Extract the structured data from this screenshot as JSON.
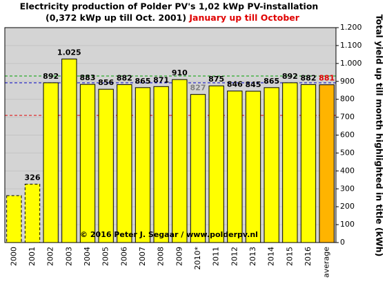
{
  "chart_data": {
    "type": "bar",
    "title": "Electricity production  of Polder PV's 1,02 kWp PV-installation",
    "subtitle": "(0,372 kWp up till Oct. 2001)",
    "subtitle_highlight": "January up till October",
    "y_label": "Total yield up till month highlighted in title (kWh)",
    "annotation": "© 2016 Peter J. Segaar / www.polderpv.nl",
    "categories": [
      "2000",
      "2001",
      "2002",
      "2003",
      "2004",
      "2005",
      "2006",
      "2007",
      "2008",
      "2009",
      "2010*",
      "2011",
      "2012",
      "2013",
      "2014",
      "2015",
      "2016",
      "average"
    ],
    "values": [
      262,
      326,
      892,
      1025,
      883,
      856,
      882,
      865,
      871,
      910,
      827,
      875,
      846,
      845,
      865,
      892,
      882,
      881
    ],
    "value_labels": [
      null,
      "326",
      "892",
      "1.025",
      "883",
      "856",
      "882",
      "865",
      "871",
      "910",
      "827",
      "875",
      "846",
      "845",
      "865",
      "892",
      "882",
      "881"
    ],
    "colors": [
      "#ffff00",
      "#ffff00",
      "#ffff00",
      "#ffff00",
      "#ffff00",
      "#ffff00",
      "#ffff00",
      "#ffff00",
      "#ffff00",
      "#ffff00",
      "#ffff00",
      "#ffff00",
      "#ffff00",
      "#ffff00",
      "#ffff00",
      "#ffff00",
      "#ffff00",
      "#ffb400"
    ],
    "label_colors": [
      "#000000",
      "#000000",
      "#000000",
      "#000000",
      "#000000",
      "#000000",
      "#000000",
      "#000000",
      "#000000",
      "#000000",
      "#808080",
      "#000000",
      "#000000",
      "#000000",
      "#000000",
      "#000000",
      "#000000",
      "#e00000"
    ],
    "dashed": [
      true,
      true,
      false,
      false,
      false,
      false,
      false,
      false,
      false,
      false,
      false,
      false,
      false,
      false,
      false,
      false,
      false,
      false
    ],
    "reference_lines": [
      {
        "value": 930,
        "color": "#00a000"
      },
      {
        "value": 892,
        "color": "#0000c0"
      },
      {
        "value": 710,
        "color": "#e00000"
      }
    ],
    "ylim": [
      0,
      1200
    ],
    "yticks": [
      0,
      100,
      200,
      300,
      400,
      500,
      600,
      700,
      800,
      900,
      {
        "value": 1000,
        "label": "1.000"
      },
      {
        "value": 1100,
        "label": "1.100"
      },
      {
        "value": 1200,
        "label": "1.200"
      }
    ],
    "grid": true
  }
}
